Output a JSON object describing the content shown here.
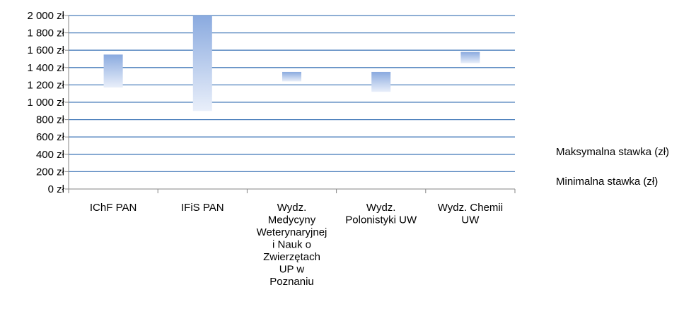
{
  "chart_data": {
    "type": "bar",
    "subtype": "floating-range",
    "categories": [
      [
        "IChF PAN"
      ],
      [
        "IFiS PAN"
      ],
      [
        "Wydz.",
        "Medycyny",
        "Weterynaryjnej",
        "i Nauk o",
        "Zwierzętach",
        "UP w",
        "Poznaniu"
      ],
      [
        "Wydz.",
        "Polonistyki UW"
      ],
      [
        "Wydz. Chemii",
        "UW"
      ]
    ],
    "series": [
      {
        "name": "Maksymalna stawka (zł)",
        "values": [
          1550,
          2000,
          1350,
          1350,
          1580
        ]
      },
      {
        "name": "Minimalna stawka (zł)",
        "values": [
          1170,
          900,
          1240,
          1120,
          1450
        ]
      }
    ],
    "ylim": [
      0,
      2000
    ],
    "yticks": [
      0,
      200,
      400,
      600,
      800,
      1000,
      1200,
      1400,
      1600,
      1800,
      2000
    ],
    "ytick_labels": [
      "0 zł",
      "200 zł",
      "400 zł",
      "600 zł",
      "800 zł",
      "1 000 zł",
      "1 200 zł",
      "1 400 zł",
      "1 600 zł",
      "1 800 zł",
      "2 000 zł"
    ],
    "grid": true,
    "legend_position": "right",
    "colors": {
      "bar_top": "#8aaadf",
      "bar_bottom": "#e9effa",
      "grid": "#4a7ebb",
      "axis": "#868686"
    }
  }
}
